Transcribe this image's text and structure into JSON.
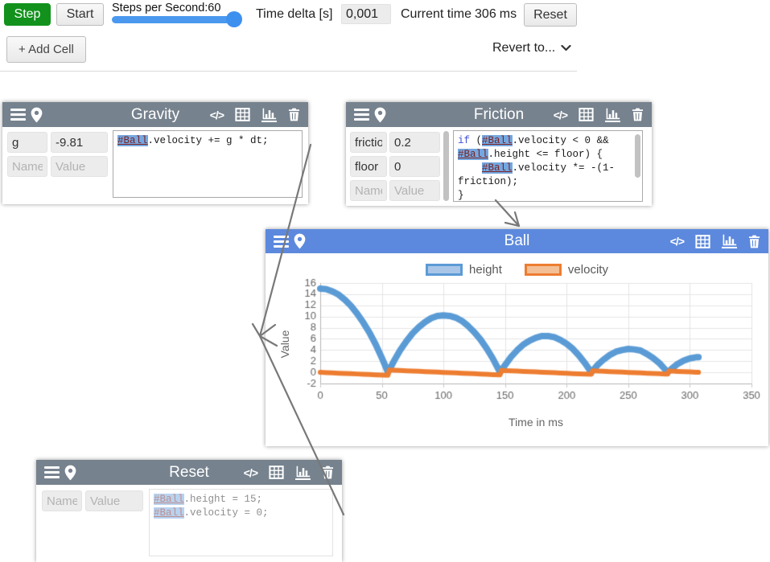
{
  "toolbar": {
    "step": "Step",
    "start": "Start",
    "slider_label": "Steps per Second:60",
    "slider_value": 60,
    "time_delta_label": "Time delta [s]",
    "time_delta_value": "0,001",
    "current_time_label": "Current time",
    "current_time_value": "306",
    "current_time_unit": "ms",
    "reset": "Reset",
    "add_cell": "+ Add Cell",
    "revert_to": "Revert to..."
  },
  "icons": {
    "code": "</>"
  },
  "placeholders": {
    "name": "Name",
    "value": "Value"
  },
  "cells": {
    "gravity": {
      "title": "Gravity",
      "rows": [
        {
          "name": "g",
          "value": "-9.81"
        }
      ],
      "code_lines": [
        [
          [
            "chip",
            "#Ball"
          ],
          [
            "t",
            ".velocity += g * dt;"
          ]
        ]
      ]
    },
    "friction": {
      "title": "Friction",
      "rows": [
        {
          "name": "friction",
          "value": "0.2"
        },
        {
          "name": "floor",
          "value": "0"
        }
      ],
      "code_lines": [
        [
          [
            "kw",
            "if"
          ],
          [
            "t",
            " ("
          ],
          [
            "chip",
            "#Ball"
          ],
          [
            "t",
            ".velocity < 0 &&"
          ]
        ],
        [
          [
            "chip",
            "#Ball"
          ],
          [
            "t",
            ".height <= floor) {"
          ]
        ],
        [
          [
            "t",
            "    "
          ],
          [
            "chip",
            "#Ball"
          ],
          [
            "t",
            ".velocity *= -(1-"
          ]
        ],
        [
          [
            "t",
            "friction);"
          ]
        ],
        [
          [
            "t",
            "}"
          ]
        ]
      ]
    },
    "ball": {
      "title": "Ball"
    },
    "reset": {
      "title": "Reset",
      "rows": [],
      "code_lines": [
        [
          [
            "chip",
            "#Ball"
          ],
          [
            "t",
            ".height = 15;"
          ]
        ],
        [
          [
            "chip",
            "#Ball"
          ],
          [
            "t",
            ".velocity = 0;"
          ]
        ]
      ]
    }
  },
  "chart_data": {
    "type": "line",
    "xlabel": "Time in ms",
    "ylabel": "Value",
    "xlim": [
      0,
      350
    ],
    "ylim": [
      -2,
      16
    ],
    "x_ticks": [
      0,
      50,
      100,
      150,
      200,
      250,
      300,
      350
    ],
    "y_ticks": [
      -2,
      0,
      2,
      4,
      6,
      8,
      10,
      12,
      14,
      16
    ],
    "grid": true,
    "legend_position": "top",
    "series": [
      {
        "name": "height",
        "color": "#5b9bd5",
        "fill": "#a9c6e8",
        "x": [
          0,
          5,
          10,
          15,
          20,
          25,
          30,
          35,
          40,
          45,
          50,
          55,
          60,
          65,
          70,
          75,
          80,
          85,
          90,
          95,
          100,
          105,
          110,
          115,
          120,
          125,
          130,
          135,
          140,
          145,
          146,
          150,
          155,
          160,
          165,
          170,
          175,
          180,
          185,
          190,
          195,
          200,
          205,
          210,
          215,
          220,
          225,
          230,
          235,
          240,
          245,
          250,
          255,
          260,
          265,
          270,
          275,
          280,
          282,
          285,
          290,
          295,
          300,
          305,
          307
        ],
        "y": [
          15,
          14.9,
          14.5,
          13.9,
          13,
          11.9,
          10.5,
          8.9,
          7.1,
          5,
          2.6,
          0,
          2.1,
          4,
          5.6,
          7,
          8.1,
          9,
          9.7,
          10.1,
          10.2,
          10.1,
          9.8,
          9.2,
          8.3,
          7.2,
          5.9,
          4.3,
          2.5,
          0.4,
          0,
          1.3,
          2.8,
          4,
          5,
          5.7,
          6.2,
          6.5,
          6.5,
          6.3,
          5.8,
          5.1,
          4.2,
          3,
          1.6,
          0,
          1.3,
          2.3,
          3.1,
          3.7,
          4,
          4.2,
          4.1,
          3.9,
          3.3,
          2.6,
          1.7,
          0.5,
          0,
          0.6,
          1.5,
          2.1,
          2.5,
          2.7,
          2.7
        ]
      },
      {
        "name": "velocity",
        "color": "#ed7d31",
        "fill": "#f4bf95",
        "x": [
          0,
          5,
          10,
          15,
          20,
          25,
          30,
          35,
          40,
          45,
          50,
          55,
          56,
          60,
          65,
          70,
          75,
          80,
          85,
          90,
          95,
          100,
          105,
          110,
          115,
          120,
          125,
          130,
          135,
          140,
          145,
          146,
          147,
          150,
          155,
          160,
          165,
          170,
          175,
          180,
          185,
          190,
          195,
          200,
          205,
          210,
          215,
          220,
          221,
          225,
          230,
          235,
          240,
          245,
          250,
          255,
          260,
          265,
          270,
          275,
          280,
          282,
          283,
          285,
          290,
          295,
          300,
          305,
          307
        ],
        "y": [
          0,
          -0.05,
          -0.1,
          -0.15,
          -0.2,
          -0.25,
          -0.29,
          -0.34,
          -0.39,
          -0.44,
          -0.49,
          -0.54,
          0.43,
          0.38,
          0.33,
          0.28,
          0.24,
          0.19,
          0.14,
          0.09,
          0.04,
          -0.01,
          -0.05,
          -0.1,
          -0.15,
          -0.2,
          -0.25,
          -0.3,
          -0.35,
          -0.4,
          -0.44,
          -0.45,
          0.36,
          0.32,
          0.27,
          0.22,
          0.17,
          0.13,
          0.08,
          0.03,
          -0.02,
          -0.07,
          -0.12,
          -0.17,
          -0.22,
          -0.27,
          -0.31,
          -0.36,
          0.29,
          0.24,
          0.19,
          0.14,
          0.09,
          0.04,
          -0.01,
          -0.05,
          -0.1,
          -0.15,
          -0.2,
          -0.25,
          -0.3,
          -0.32,
          0.25,
          0.22,
          0.17,
          0.13,
          0.08,
          0.03,
          0.01
        ]
      }
    ]
  }
}
